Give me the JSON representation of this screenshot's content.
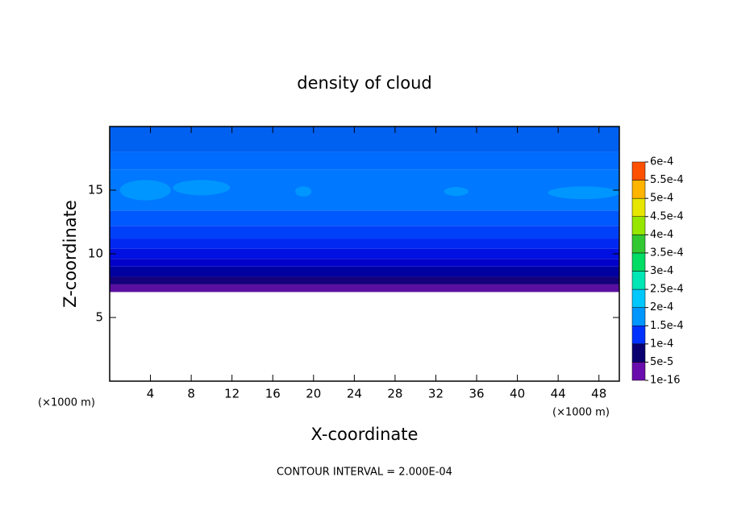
{
  "chart_data": {
    "type": "contour",
    "title": "density of cloud",
    "xlabel": "X-coordinate",
    "ylabel": "Z-coordinate",
    "x_unit": "(×1000 m)",
    "y_unit": "(×1000 m)",
    "footer": "CONTOUR INTERVAL = 2.000E-04",
    "xlim": [
      0,
      50
    ],
    "ylim": [
      0,
      20
    ],
    "xticks": [
      4,
      8,
      12,
      16,
      20,
      24,
      28,
      32,
      36,
      40,
      44,
      48
    ],
    "yticks": [
      5,
      10,
      15
    ],
    "layers": [
      {
        "z0": 7.0,
        "z1": 7.6,
        "color": "#5a0fa0"
      },
      {
        "z0": 7.6,
        "z1": 8.2,
        "color": "#14007a"
      },
      {
        "z0": 8.2,
        "z1": 9.0,
        "color": "#0000a0"
      },
      {
        "z0": 9.0,
        "z1": 9.6,
        "color": "#0000c8"
      },
      {
        "z0": 9.6,
        "z1": 10.4,
        "color": "#0010e0"
      },
      {
        "z0": 10.4,
        "z1": 11.2,
        "color": "#0028f0"
      },
      {
        "z0": 11.2,
        "z1": 12.2,
        "color": "#0040f8"
      },
      {
        "z0": 12.2,
        "z1": 13.4,
        "color": "#0058ff"
      },
      {
        "z0": 13.4,
        "z1": 16.6,
        "color": "#0078ff"
      },
      {
        "z0": 16.6,
        "z1": 18.0,
        "color": "#006cff"
      },
      {
        "z0": 18.0,
        "z1": 20.0,
        "color": "#0060f0"
      }
    ],
    "patches": [
      {
        "x": 3.5,
        "z": 15.0,
        "rx": 2.5,
        "rz": 0.8,
        "color": "#0096ff"
      },
      {
        "x": 9.0,
        "z": 15.2,
        "rx": 2.8,
        "rz": 0.6,
        "color": "#0096ff"
      },
      {
        "x": 19.0,
        "z": 14.9,
        "rx": 0.8,
        "rz": 0.4,
        "color": "#0096ff"
      },
      {
        "x": 34.0,
        "z": 14.9,
        "rx": 1.2,
        "rz": 0.35,
        "color": "#0096ff"
      },
      {
        "x": 46.5,
        "z": 14.8,
        "rx": 3.5,
        "rz": 0.5,
        "color": "#0096ff"
      }
    ],
    "colorbar": {
      "ticks": [
        {
          "value": 1e-16,
          "label": "1e-16"
        },
        {
          "value": 5e-05,
          "label": "5e-5"
        },
        {
          "value": 0.0001,
          "label": "1e-4"
        },
        {
          "value": 0.00015,
          "label": "1.5e-4"
        },
        {
          "value": 0.0002,
          "label": "2e-4"
        },
        {
          "value": 0.00025,
          "label": "2.5e-4"
        },
        {
          "value": 0.0003,
          "label": "3e-4"
        },
        {
          "value": 0.00035,
          "label": "3.5e-4"
        },
        {
          "value": 0.0004,
          "label": "4e-4"
        },
        {
          "value": 0.00045,
          "label": "4.5e-4"
        },
        {
          "value": 0.0005,
          "label": "5e-4"
        },
        {
          "value": 0.00055,
          "label": "5.5e-4"
        },
        {
          "value": 0.0006,
          "label": "6e-4"
        }
      ],
      "colors": [
        "#6a0dad",
        "#0a0070",
        "#0032ff",
        "#0096ff",
        "#00c8ff",
        "#00e6b4",
        "#00dc64",
        "#32c832",
        "#96e600",
        "#e6e600",
        "#ffb400",
        "#ff5000",
        "#ff1e1e",
        "#ff8c8c"
      ]
    }
  }
}
